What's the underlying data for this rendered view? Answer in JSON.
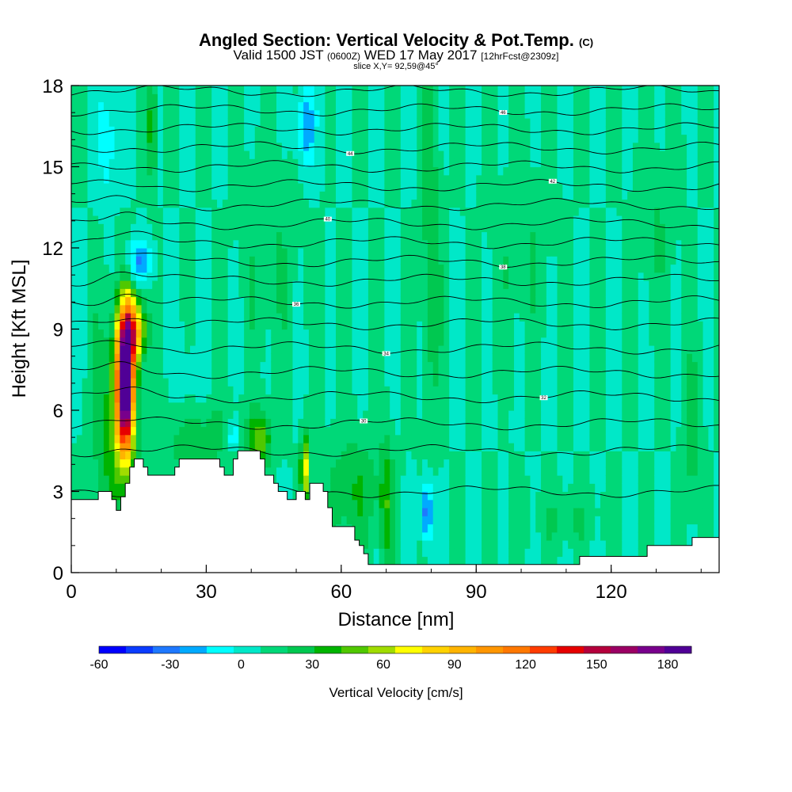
{
  "title": {
    "main": "Angled Section: Vertical Velocity & Pot.Temp.",
    "suffix": "(C)",
    "valid_prefix": "Valid 1500 JST",
    "valid_utc": "(0600Z)",
    "valid_date": "WED 17 May 2017",
    "forecast": "[12hrFcst@2309z]",
    "slice": "slice X,Y= 92,59@45°"
  },
  "chart_data": {
    "type": "heatmap",
    "xlabel": "Distance [nm]",
    "ylabel": "Height [Kft MSL]",
    "xlim": [
      0,
      144
    ],
    "ylim": [
      0,
      18
    ],
    "x_ticks": [
      "0",
      "30",
      "60",
      "90",
      "120"
    ],
    "y_ticks": [
      "0",
      "3",
      "6",
      "9",
      "12",
      "15",
      "18"
    ],
    "colorbar": {
      "label": "Vertical Velocity [cm/s]",
      "range": [
        -60,
        190
      ],
      "step": 10,
      "tick_labels": [
        "-60",
        "-30",
        "0",
        "30",
        "60",
        "90",
        "120",
        "150",
        "180"
      ],
      "colors": [
        "#0000ff",
        "#0a3cff",
        "#1e78ff",
        "#00aaff",
        "#00ffff",
        "#00e8c8",
        "#00d878",
        "#00c850",
        "#00b400",
        "#50c800",
        "#a0dc00",
        "#ffff00",
        "#ffd200",
        "#ffb400",
        "#ff9600",
        "#ff7800",
        "#ff3c00",
        "#e60000",
        "#b4003c",
        "#9b0064",
        "#78008c",
        "#500096"
      ]
    },
    "background_value": 0,
    "features": [
      {
        "x": 12,
        "y": 7.0,
        "value": 170,
        "sx": 2.0,
        "sy": 2.6
      },
      {
        "x": 14,
        "y": 9.0,
        "value": 75,
        "sx": 2.5,
        "sy": 1.2
      },
      {
        "x": 9,
        "y": 5.5,
        "value": 25,
        "sx": 4.0,
        "sy": 4.0
      },
      {
        "x": 28,
        "y": 5.0,
        "value": 15,
        "sx": 10.0,
        "sy": 1.5
      },
      {
        "x": 42,
        "y": 5.0,
        "value": 35,
        "sx": 2.5,
        "sy": 1.0
      },
      {
        "x": 52,
        "y": 3.8,
        "value": 55,
        "sx": 1.0,
        "sy": 1.2
      },
      {
        "x": 63,
        "y": 3.0,
        "value": 20,
        "sx": 6.0,
        "sy": 2.0
      },
      {
        "x": 70,
        "y": 2.5,
        "value": 25,
        "sx": 1.5,
        "sy": 2.5
      },
      {
        "x": 79,
        "y": 2.2,
        "value": -40,
        "sx": 1.2,
        "sy": 1.2
      },
      {
        "x": 80,
        "y": 12.0,
        "value": 20,
        "sx": 2.0,
        "sy": 6.0
      },
      {
        "x": 8,
        "y": 16.0,
        "value": -20,
        "sx": 2.0,
        "sy": 2.0
      },
      {
        "x": 15,
        "y": 11.5,
        "value": -30,
        "sx": 3.0,
        "sy": 0.8
      },
      {
        "x": 18,
        "y": 16.5,
        "value": 30,
        "sx": 1.0,
        "sy": 2.0
      },
      {
        "x": 52,
        "y": 16.5,
        "value": -30,
        "sx": 2.0,
        "sy": 1.5
      },
      {
        "x": 36,
        "y": 5.0,
        "value": -30,
        "sx": 1.0,
        "sy": 0.6
      },
      {
        "x": 26,
        "y": 7.0,
        "value": -10,
        "sx": 3.0,
        "sy": 1.5
      },
      {
        "x": 44,
        "y": 12.0,
        "value": 10,
        "sx": 6.0,
        "sy": 4.0
      },
      {
        "x": 100,
        "y": 12.0,
        "value": 10,
        "sx": 6.0,
        "sy": 3.0
      },
      {
        "x": 130,
        "y": 13.0,
        "value": 10,
        "sx": 4.0,
        "sy": 3.0
      },
      {
        "x": 138,
        "y": 5.0,
        "value": 15,
        "sx": 2.0,
        "sy": 3.0
      },
      {
        "x": 110,
        "y": 2.0,
        "value": 10,
        "sx": 8.0,
        "sy": 1.0
      }
    ],
    "terrain": [
      [
        0,
        2.7
      ],
      [
        6,
        2.7
      ],
      [
        6,
        3.0
      ],
      [
        9,
        3.0
      ],
      [
        9,
        2.7
      ],
      [
        10,
        2.7
      ],
      [
        10,
        2.3
      ],
      [
        11,
        2.3
      ],
      [
        11,
        2.8
      ],
      [
        12,
        2.8
      ],
      [
        12,
        3.3
      ],
      [
        13,
        3.3
      ],
      [
        13,
        3.9
      ],
      [
        14,
        3.9
      ],
      [
        14,
        4.2
      ],
      [
        16,
        4.2
      ],
      [
        16,
        3.9
      ],
      [
        17,
        3.9
      ],
      [
        17,
        3.6
      ],
      [
        23,
        3.6
      ],
      [
        23,
        3.9
      ],
      [
        24,
        3.9
      ],
      [
        24,
        4.2
      ],
      [
        33,
        4.2
      ],
      [
        33,
        3.9
      ],
      [
        34,
        3.9
      ],
      [
        34,
        3.6
      ],
      [
        36,
        3.6
      ],
      [
        36,
        4.2
      ],
      [
        37,
        4.2
      ],
      [
        37,
        4.5
      ],
      [
        42,
        4.5
      ],
      [
        42,
        4.2
      ],
      [
        43,
        4.2
      ],
      [
        43,
        3.6
      ],
      [
        45,
        3.6
      ],
      [
        45,
        3.3
      ],
      [
        46,
        3.3
      ],
      [
        46,
        3.0
      ],
      [
        48,
        3.0
      ],
      [
        48,
        2.7
      ],
      [
        50,
        2.7
      ],
      [
        50,
        3.0
      ],
      [
        52,
        3.0
      ],
      [
        52,
        2.7
      ],
      [
        53,
        2.7
      ],
      [
        53,
        3.3
      ],
      [
        56,
        3.3
      ],
      [
        56,
        3.0
      ],
      [
        57,
        3.0
      ],
      [
        57,
        2.4
      ],
      [
        58,
        2.4
      ],
      [
        58,
        1.7
      ],
      [
        63,
        1.7
      ],
      [
        63,
        1.2
      ],
      [
        64,
        1.2
      ],
      [
        64,
        1.0
      ],
      [
        65,
        1.0
      ],
      [
        65,
        0.7
      ],
      [
        66,
        0.7
      ],
      [
        66,
        0.3
      ],
      [
        113,
        0.3
      ],
      [
        113,
        0.6
      ],
      [
        128,
        0.6
      ],
      [
        128,
        1.0
      ],
      [
        138,
        1.0
      ],
      [
        138,
        1.3
      ],
      [
        144,
        1.3
      ]
    ],
    "isentropes": {
      "levels": [
        3,
        4.5,
        5.5,
        6.5,
        7.4,
        8.3,
        9.2,
        10.0,
        10.8,
        11.5,
        12.2,
        12.9,
        13.6,
        14.3,
        15.0,
        15.7,
        16.4,
        17.1,
        17.8
      ],
      "labels": [
        {
          "level_index": 2,
          "x": 65,
          "text": "30"
        },
        {
          "level_index": 3,
          "x": 105,
          "text": "32"
        },
        {
          "level_index": 5,
          "x": 70,
          "text": "34"
        },
        {
          "level_index": 7,
          "x": 50,
          "text": "36"
        },
        {
          "level_index": 9,
          "x": 96,
          "text": "38"
        },
        {
          "level_index": 11,
          "x": 57,
          "text": "40"
        },
        {
          "level_index": 13,
          "x": 107,
          "text": "42"
        },
        {
          "level_index": 15,
          "x": 62,
          "text": "44"
        },
        {
          "level_index": 17,
          "x": 96,
          "text": "46"
        }
      ]
    }
  }
}
